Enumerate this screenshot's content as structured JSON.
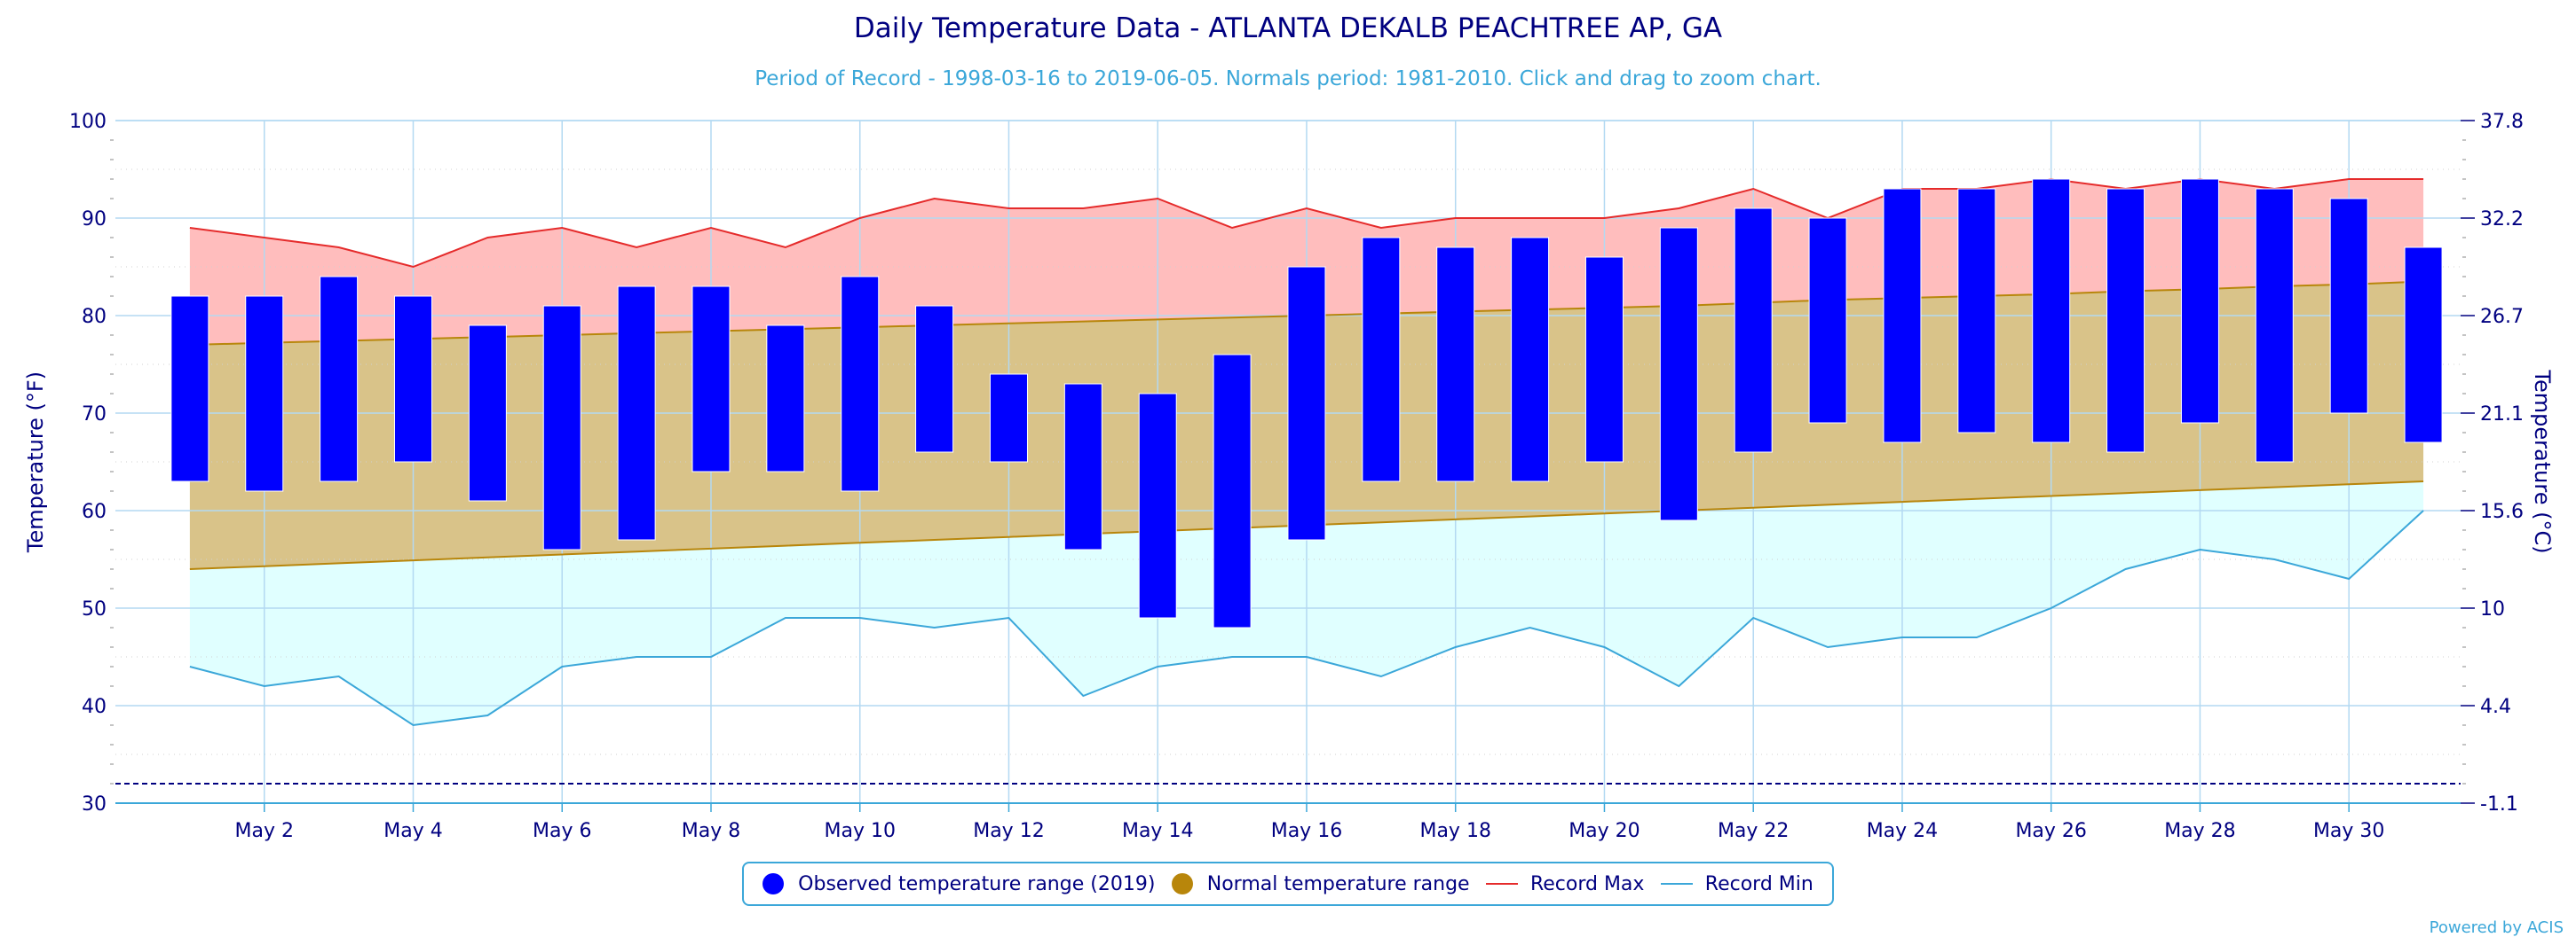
{
  "page": {
    "title": "Daily Temperature Data - ATLANTA DEKALB PEACHTREE AP, GA",
    "subtitle": "Period of Record - 1998-03-16 to 2019-06-05. Normals period: 1981-2010. Click and drag to zoom chart.",
    "credits": "Powered by ACIS"
  },
  "legend": {
    "observed": "Observed temperature range (2019)",
    "normal": "Normal temperature range",
    "record_max": "Record Max",
    "record_min": "Record Min"
  },
  "colors": {
    "observed": "#0000ff",
    "normal_symbol": "#b8860b",
    "normal_fill": "#d9c389",
    "normal_line": "#b8860b",
    "record_max_line": "#e52b2b",
    "record_max_fill": "#ffbdbd",
    "record_min_line": "#3ba7d9",
    "record_min_fill": "#e0ffff",
    "freeze_line": "#000080",
    "axis_text": "#000080"
  },
  "chart_data": {
    "type": "bar",
    "y_left_label": "Temperature (°F)",
    "y_right_label": "Temperature (°C)",
    "ylim": [
      30,
      100
    ],
    "y_left_ticks": [
      "30",
      "40",
      "50",
      "60",
      "70",
      "80",
      "90",
      "100"
    ],
    "y_right_ticks": [
      "-1.1",
      "4.4",
      "10",
      "15.6",
      "21.1",
      "26.7",
      "32.2",
      "37.8"
    ],
    "x_tick_labels": [
      "May 2",
      "May 4",
      "May 6",
      "May 8",
      "May 10",
      "May 12",
      "May 14",
      "May 16",
      "May 18",
      "May 20",
      "May 22",
      "May 24",
      "May 26",
      "May 28",
      "May 30"
    ],
    "x_ticks_days": [
      2,
      4,
      6,
      8,
      10,
      12,
      14,
      16,
      18,
      20,
      22,
      24,
      26,
      28,
      30
    ],
    "freezing_line": 32,
    "days": [
      1,
      2,
      3,
      4,
      5,
      6,
      7,
      8,
      9,
      10,
      11,
      12,
      13,
      14,
      15,
      16,
      17,
      18,
      19,
      20,
      21,
      22,
      23,
      24,
      25,
      26,
      27,
      28,
      29,
      30,
      31
    ],
    "series": [
      {
        "name": "Observed temperature range (2019)",
        "high": [
          82,
          82,
          84,
          82,
          79,
          81,
          83,
          83,
          79,
          84,
          81,
          74,
          73,
          72,
          76,
          85,
          88,
          87,
          88,
          86,
          89,
          91,
          90,
          93,
          93,
          94,
          93,
          94,
          93,
          92,
          87
        ],
        "low": [
          63,
          62,
          63,
          65,
          61,
          56,
          57,
          64,
          64,
          62,
          66,
          65,
          56,
          49,
          48,
          57,
          63,
          63,
          63,
          65,
          59,
          66,
          69,
          67,
          68,
          67,
          66,
          69,
          65,
          70,
          67
        ]
      },
      {
        "name": "Normal temperature range",
        "high": [
          77,
          77.2,
          77.4,
          77.6,
          77.8,
          78,
          78.2,
          78.4,
          78.6,
          78.8,
          79,
          79.2,
          79.4,
          79.6,
          79.8,
          80,
          80.2,
          80.4,
          80.6,
          80.8,
          81,
          81.3,
          81.6,
          81.8,
          82,
          82.2,
          82.5,
          82.7,
          83,
          83.2,
          83.5
        ],
        "low": [
          54,
          54.3,
          54.6,
          54.9,
          55.2,
          55.5,
          55.8,
          56.1,
          56.4,
          56.7,
          57,
          57.3,
          57.6,
          57.9,
          58.2,
          58.5,
          58.8,
          59.1,
          59.4,
          59.7,
          60,
          60.3,
          60.6,
          60.9,
          61.2,
          61.5,
          61.8,
          62.1,
          62.4,
          62.7,
          63
        ]
      },
      {
        "name": "Record Max",
        "values": [
          89,
          88,
          87,
          85,
          88,
          89,
          87,
          89,
          87,
          90,
          92,
          91,
          91,
          92,
          89,
          91,
          89,
          90,
          90,
          90,
          91,
          93,
          90,
          93,
          93,
          94,
          93,
          94,
          93,
          94,
          94
        ]
      },
      {
        "name": "Record Min",
        "values": [
          44,
          42,
          43,
          38,
          39,
          44,
          45,
          45,
          49,
          49,
          48,
          49,
          41,
          44,
          45,
          45,
          43,
          46,
          48,
          46,
          42,
          49,
          46,
          47,
          47,
          50,
          54,
          56,
          55,
          53,
          60
        ]
      }
    ]
  }
}
